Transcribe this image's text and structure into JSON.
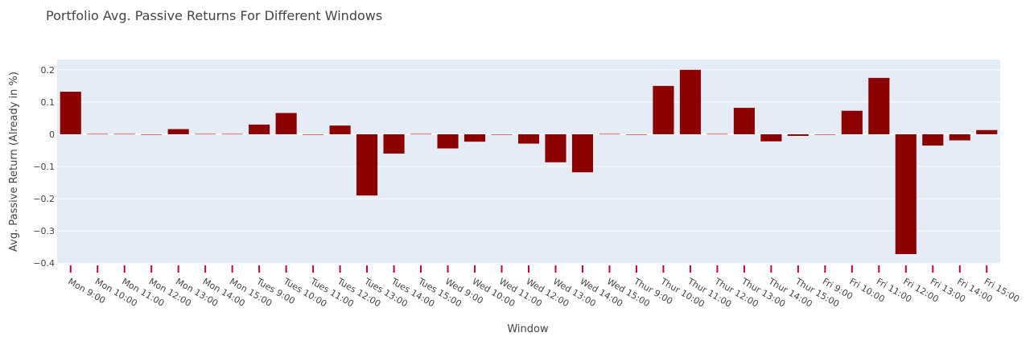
{
  "chart_data": {
    "type": "bar",
    "title": "Portfolio Avg. Passive Returns For Different Windows",
    "xlabel": "Window",
    "ylabel": "Avg. Passive Return (Already in %)",
    "ylim": [
      -0.402,
      0.232
    ],
    "yticks": [
      0.2,
      0.1,
      0,
      -0.1,
      -0.2,
      -0.3,
      -0.4
    ],
    "ytick_labels": [
      "0.2",
      "0.1",
      "0",
      "−0.1",
      "−0.2",
      "−0.3",
      "−0.4"
    ],
    "grid": true,
    "colors": {
      "bar": "#8b0000",
      "plot_bg": "#e5ecf6",
      "grid": "#ffffff",
      "tick_mark": "#c0003c"
    },
    "categories": [
      "Mon 9:00",
      "Mon 10:00",
      "Mon 11:00",
      "Mon 12:00",
      "Mon 13:00",
      "Mon 14:00",
      "Mon 15:00",
      "Tues 9:00",
      "Tues 10:00",
      "Tues 11:00",
      "Tues 12:00",
      "Tues 13:00",
      "Tues 14:00",
      "Tues 15:00",
      "Wed 9:00",
      "Wed 10:00",
      "Wed 11:00",
      "Wed 12:00",
      "Wed 13:00",
      "Wed 14:00",
      "Wed 15:00",
      "Thur 9:00",
      "Thur 10:00",
      "Thur 11:00",
      "Thur 12:00",
      "Thur 13:00",
      "Thur 14:00",
      "Thur 15:00",
      "Fri 9:00",
      "Fri 10:00",
      "Fri 11:00",
      "Fri 12:00",
      "Fri 13:00",
      "Fri 14:00",
      "Fri 15:00"
    ],
    "values": [
      0.132,
      0.001,
      0.001,
      0.0,
      0.016,
      0.001,
      0.001,
      0.03,
      0.066,
      0.0,
      0.027,
      -0.19,
      -0.06,
      0.001,
      -0.044,
      -0.023,
      0.0,
      -0.029,
      -0.087,
      -0.118,
      0.001,
      0.0,
      0.15,
      0.2,
      0.001,
      0.082,
      -0.022,
      -0.005,
      0.0,
      0.073,
      0.175,
      -0.372,
      -0.035,
      -0.019,
      0.013
    ]
  }
}
